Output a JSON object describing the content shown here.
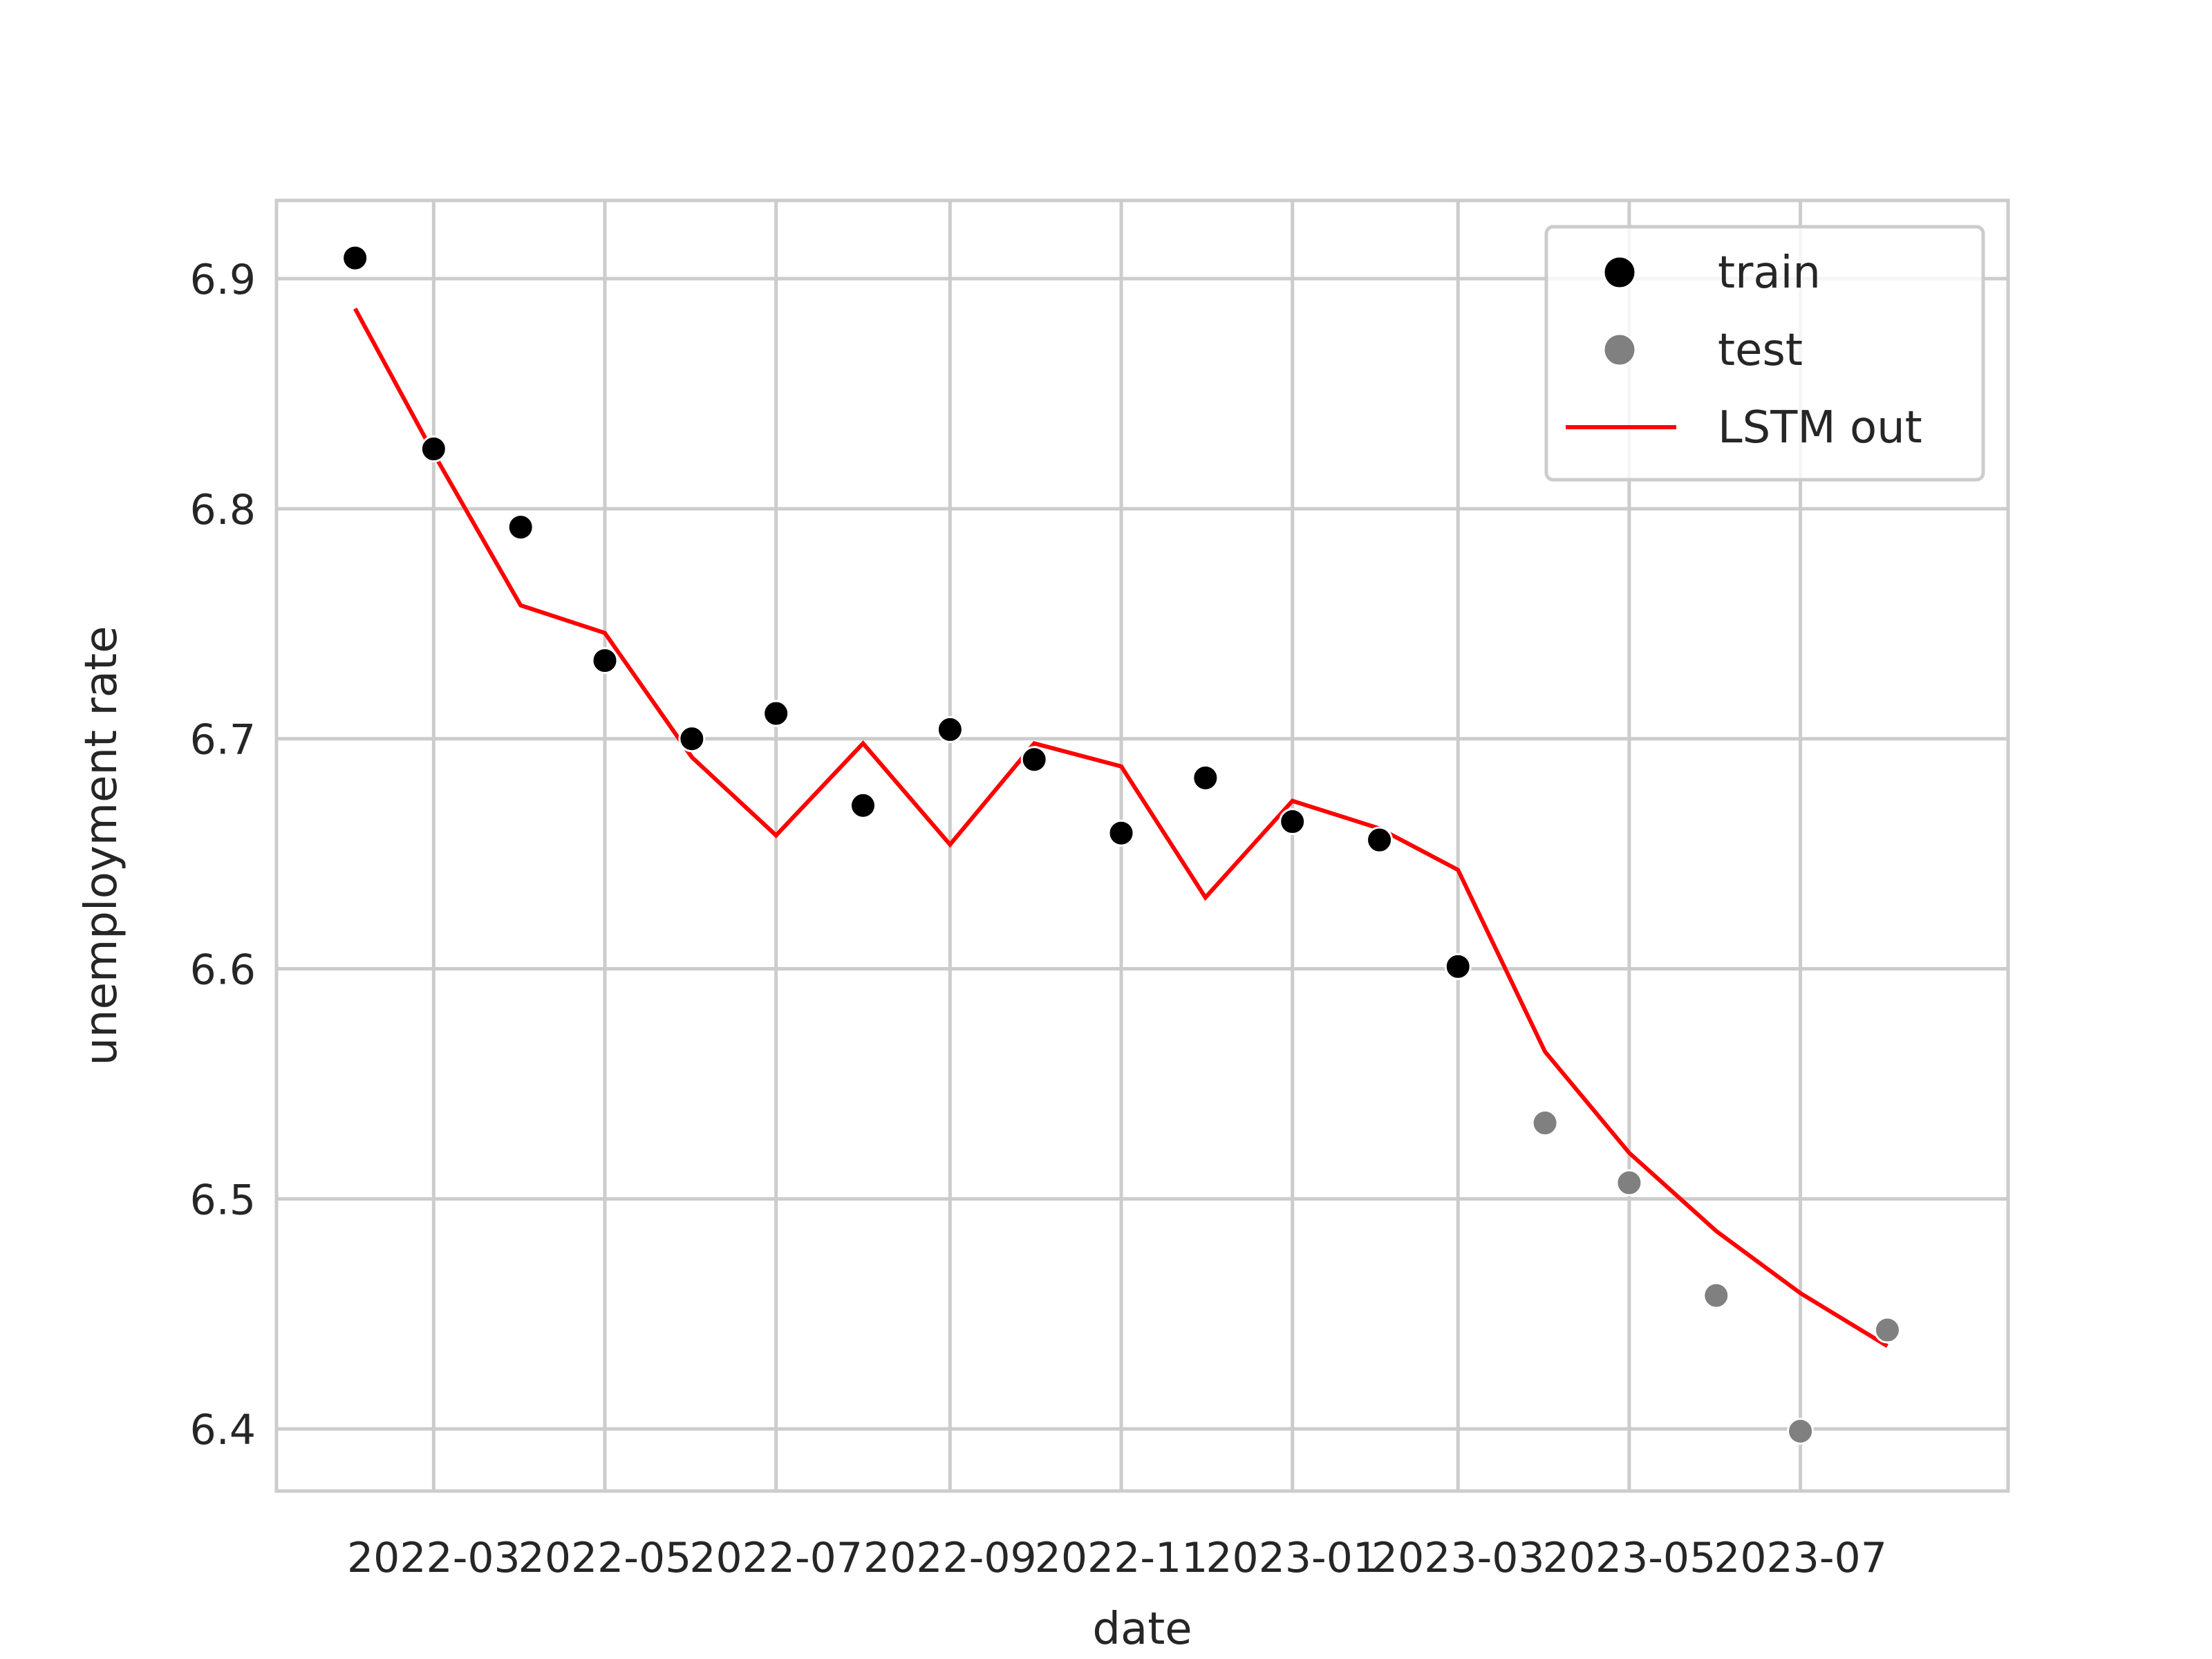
{
  "chart_data": {
    "type": "scatter",
    "xlabel": "date",
    "ylabel": "unemployment rate",
    "x_ticks": [
      "2022-03",
      "2022-05",
      "2022-07",
      "2022-09",
      "2022-11",
      "2023-01",
      "2023-03",
      "2023-05",
      "2023-07"
    ],
    "y_ticks": [
      "6.4",
      "6.5",
      "6.6",
      "6.7",
      "6.8",
      "6.9"
    ],
    "xlim": [
      "2022-01-04",
      "2023-09-13"
    ],
    "ylim": [
      6.373,
      6.934
    ],
    "grid": true,
    "legend_position": "top-right",
    "series": [
      {
        "name": "train",
        "kind": "scatter",
        "color": "#000000",
        "points": [
          {
            "x": "2022-02-01",
            "y": 6.909
          },
          {
            "x": "2022-03-01",
            "y": 6.826
          },
          {
            "x": "2022-04-01",
            "y": 6.792
          },
          {
            "x": "2022-05-01",
            "y": 6.734
          },
          {
            "x": "2022-06-01",
            "y": 6.7
          },
          {
            "x": "2022-07-01",
            "y": 6.711
          },
          {
            "x": "2022-08-01",
            "y": 6.671
          },
          {
            "x": "2022-09-01",
            "y": 6.704
          },
          {
            "x": "2022-10-01",
            "y": 6.691
          },
          {
            "x": "2022-11-01",
            "y": 6.659
          },
          {
            "x": "2022-12-01",
            "y": 6.683
          },
          {
            "x": "2023-01-01",
            "y": 6.664
          },
          {
            "x": "2023-02-01",
            "y": 6.656
          },
          {
            "x": "2023-03-01",
            "y": 6.601
          }
        ]
      },
      {
        "name": "test",
        "kind": "scatter",
        "color": "#808080",
        "points": [
          {
            "x": "2023-04-01",
            "y": 6.533
          },
          {
            "x": "2023-05-01",
            "y": 6.507
          },
          {
            "x": "2023-06-01",
            "y": 6.458
          },
          {
            "x": "2023-07-01",
            "y": 6.399
          },
          {
            "x": "2023-08-01",
            "y": 6.443
          }
        ]
      },
      {
        "name": "LSTM out",
        "kind": "line",
        "color": "#ff0000",
        "points": [
          {
            "x": "2022-02-01",
            "y": 6.887
          },
          {
            "x": "2022-03-01",
            "y": 6.824
          },
          {
            "x": "2022-04-01",
            "y": 6.758
          },
          {
            "x": "2022-05-01",
            "y": 6.746
          },
          {
            "x": "2022-06-01",
            "y": 6.692
          },
          {
            "x": "2022-07-01",
            "y": 6.658
          },
          {
            "x": "2022-08-01",
            "y": 6.698
          },
          {
            "x": "2022-09-01",
            "y": 6.654
          },
          {
            "x": "2022-10-01",
            "y": 6.698
          },
          {
            "x": "2022-11-01",
            "y": 6.688
          },
          {
            "x": "2022-12-01",
            "y": 6.631
          },
          {
            "x": "2023-01-01",
            "y": 6.673
          },
          {
            "x": "2023-02-01",
            "y": 6.661
          },
          {
            "x": "2023-03-01",
            "y": 6.643
          },
          {
            "x": "2023-04-01",
            "y": 6.564
          },
          {
            "x": "2023-05-01",
            "y": 6.52
          },
          {
            "x": "2023-06-01",
            "y": 6.486
          },
          {
            "x": "2023-07-01",
            "y": 6.459
          },
          {
            "x": "2023-08-01",
            "y": 6.436
          }
        ]
      }
    ]
  }
}
